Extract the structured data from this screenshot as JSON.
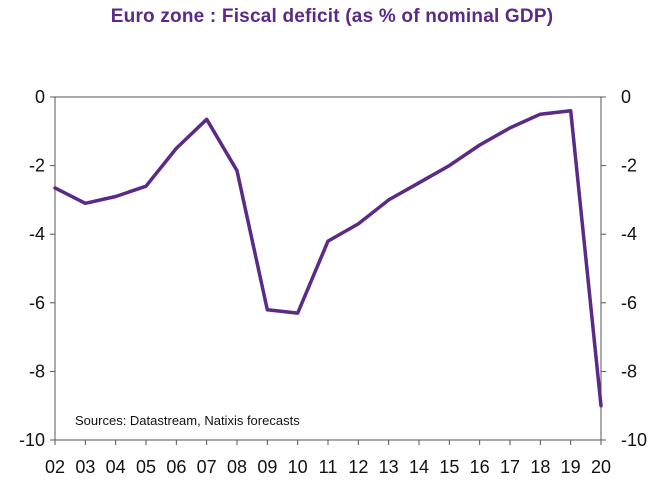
{
  "chart_data": {
    "type": "line",
    "title": "Euro zone : Fiscal deficit (as % of nominal GDP)",
    "note": "Sources:  Datastream,  Natixis forecasts",
    "categories": [
      "02",
      "03",
      "04",
      "05",
      "06",
      "07",
      "08",
      "09",
      "10",
      "11",
      "12",
      "13",
      "14",
      "15",
      "16",
      "17",
      "18",
      "19",
      "20"
    ],
    "series": [
      {
        "values": [
          -2.65,
          -3.1,
          -2.9,
          -2.6,
          -1.5,
          -0.65,
          -2.15,
          -6.2,
          -6.3,
          -4.2,
          -3.7,
          -3.0,
          -2.5,
          -2.0,
          -1.4,
          -0.9,
          -0.5,
          -0.4,
          -9.0
        ],
        "color": "#5b2a86"
      }
    ],
    "ylim": [
      -10,
      0
    ],
    "yticks": [
      "0",
      "-2",
      "-4",
      "-6",
      "-8",
      "-10"
    ],
    "y_axis_both_sides": true,
    "grid": false
  }
}
